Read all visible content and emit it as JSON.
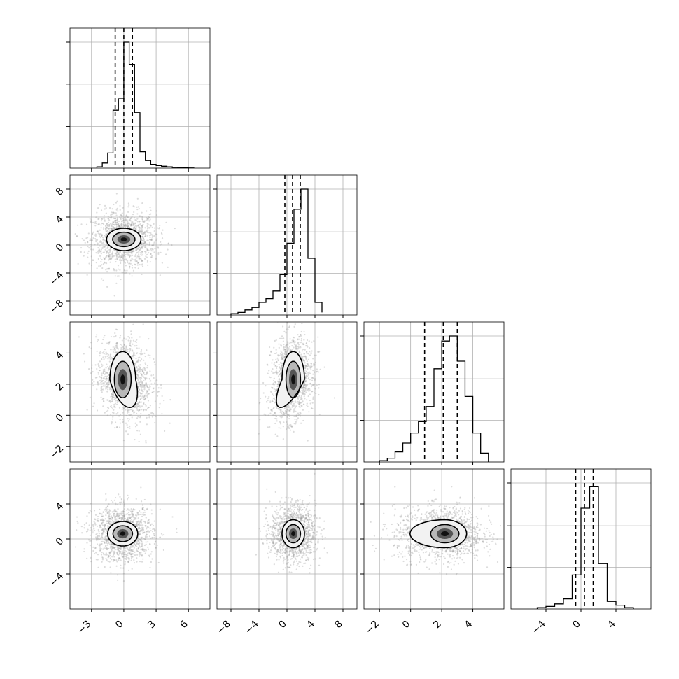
{
  "chart_data": {
    "type": "corner",
    "n_params": 4,
    "grid": true,
    "colors": {
      "line": "#000000",
      "grid": "#b0b0b0",
      "scatter": "#9a9a9a",
      "contour": "#000000"
    },
    "params": [
      {
        "index": 0,
        "range": [
          -5,
          8
        ],
        "ticks": [
          -3,
          0,
          3,
          6
        ],
        "tick_labels": [
          "−3",
          "0",
          "3",
          "6"
        ],
        "quantiles": [
          -0.8,
          0.0,
          0.8
        ],
        "hist": {
          "edges": [
            -2.5,
            -2.0,
            -1.5,
            -1.0,
            -0.5,
            0.0,
            0.5,
            1.0,
            1.5,
            2.0,
            2.5,
            3.0,
            3.5,
            4.0,
            4.5,
            5.0,
            5.5,
            6.0,
            6.5
          ],
          "counts": [
            0.01,
            0.04,
            0.12,
            0.46,
            0.55,
            1.0,
            0.82,
            0.44,
            0.13,
            0.06,
            0.03,
            0.02,
            0.015,
            0.01,
            0.006,
            0.004,
            0.002,
            0.001
          ]
        }
      },
      {
        "index": 1,
        "range": [
          -10,
          10
        ],
        "ticks": [
          -8,
          -4,
          0,
          4,
          8
        ],
        "tick_labels": [
          "−8",
          "−4",
          "0",
          "4",
          "8"
        ],
        "quantiles": [
          -0.3,
          0.8,
          1.9
        ],
        "hist": {
          "edges": [
            -8,
            -7,
            -6,
            -5,
            -4,
            -3,
            -2,
            -1,
            0,
            1,
            2,
            3,
            4,
            5
          ],
          "counts": [
            0.01,
            0.02,
            0.04,
            0.06,
            0.1,
            0.13,
            0.19,
            0.32,
            0.57,
            0.84,
            1.0,
            0.45,
            0.1,
            0.02
          ]
        }
      },
      {
        "index": 2,
        "range": [
          -3,
          6
        ],
        "ticks": [
          -2,
          0,
          2,
          4
        ],
        "tick_labels": [
          "−2",
          "0",
          "2",
          "4"
        ],
        "quantiles": [
          0.9,
          2.1,
          3.0
        ],
        "hist": {
          "edges": [
            -2.0,
            -1.5,
            -1.0,
            -0.5,
            0.0,
            0.5,
            1.0,
            1.5,
            2.0,
            2.5,
            3.0,
            3.5,
            4.0,
            4.5,
            5.0
          ],
          "counts": [
            0.01,
            0.03,
            0.08,
            0.15,
            0.23,
            0.32,
            0.44,
            0.74,
            0.96,
            1.0,
            0.8,
            0.52,
            0.23,
            0.07
          ]
        }
      },
      {
        "index": 3,
        "range": [
          -8,
          8
        ],
        "ticks": [
          -4,
          0,
          4
        ],
        "tick_labels": [
          "−4",
          "0",
          "4"
        ],
        "quantiles": [
          -0.6,
          0.4,
          1.4
        ],
        "hist": {
          "edges": [
            -5,
            -4,
            -3,
            -2,
            -1,
            0,
            1,
            2,
            3,
            4,
            5,
            6
          ],
          "counts": [
            0.01,
            0.02,
            0.04,
            0.08,
            0.27,
            0.8,
            0.97,
            0.36,
            0.06,
            0.03,
            0.01
          ]
        }
      }
    ],
    "hist_y_ticks": [
      0.33,
      0.66,
      1.0
    ],
    "pairs": [
      {
        "x": 0,
        "y": 1,
        "center": [
          0.0,
          0.8
        ],
        "sigma": [
          0.8,
          0.8
        ],
        "sigma_tail": [
          1.5,
          2.0
        ],
        "skew": "none"
      },
      {
        "x": 0,
        "y": 2,
        "center": [
          -0.1,
          2.3
        ],
        "sigma": [
          0.6,
          0.9
        ],
        "sigma_tail": [
          1.2,
          1.3
        ],
        "skew": "tail-down-right"
      },
      {
        "x": 1,
        "y": 2,
        "center": [
          0.9,
          2.3
        ],
        "sigma": [
          0.8,
          0.9
        ],
        "sigma_tail": [
          1.5,
          1.3
        ],
        "skew": "tail-down-left"
      },
      {
        "x": 0,
        "y": 3,
        "center": [
          -0.1,
          0.6
        ],
        "sigma": [
          0.7,
          0.7
        ],
        "sigma_tail": [
          1.4,
          1.6
        ],
        "skew": "none"
      },
      {
        "x": 1,
        "y": 3,
        "center": [
          0.9,
          0.6
        ],
        "sigma": [
          0.8,
          0.8
        ],
        "sigma_tail": [
          1.6,
          1.6
        ],
        "skew": "none"
      },
      {
        "x": 2,
        "y": 3,
        "center": [
          2.2,
          0.6
        ],
        "sigma": [
          0.7,
          0.8
        ],
        "sigma_tail": [
          1.2,
          1.5
        ],
        "skew": "tail-left"
      }
    ]
  }
}
